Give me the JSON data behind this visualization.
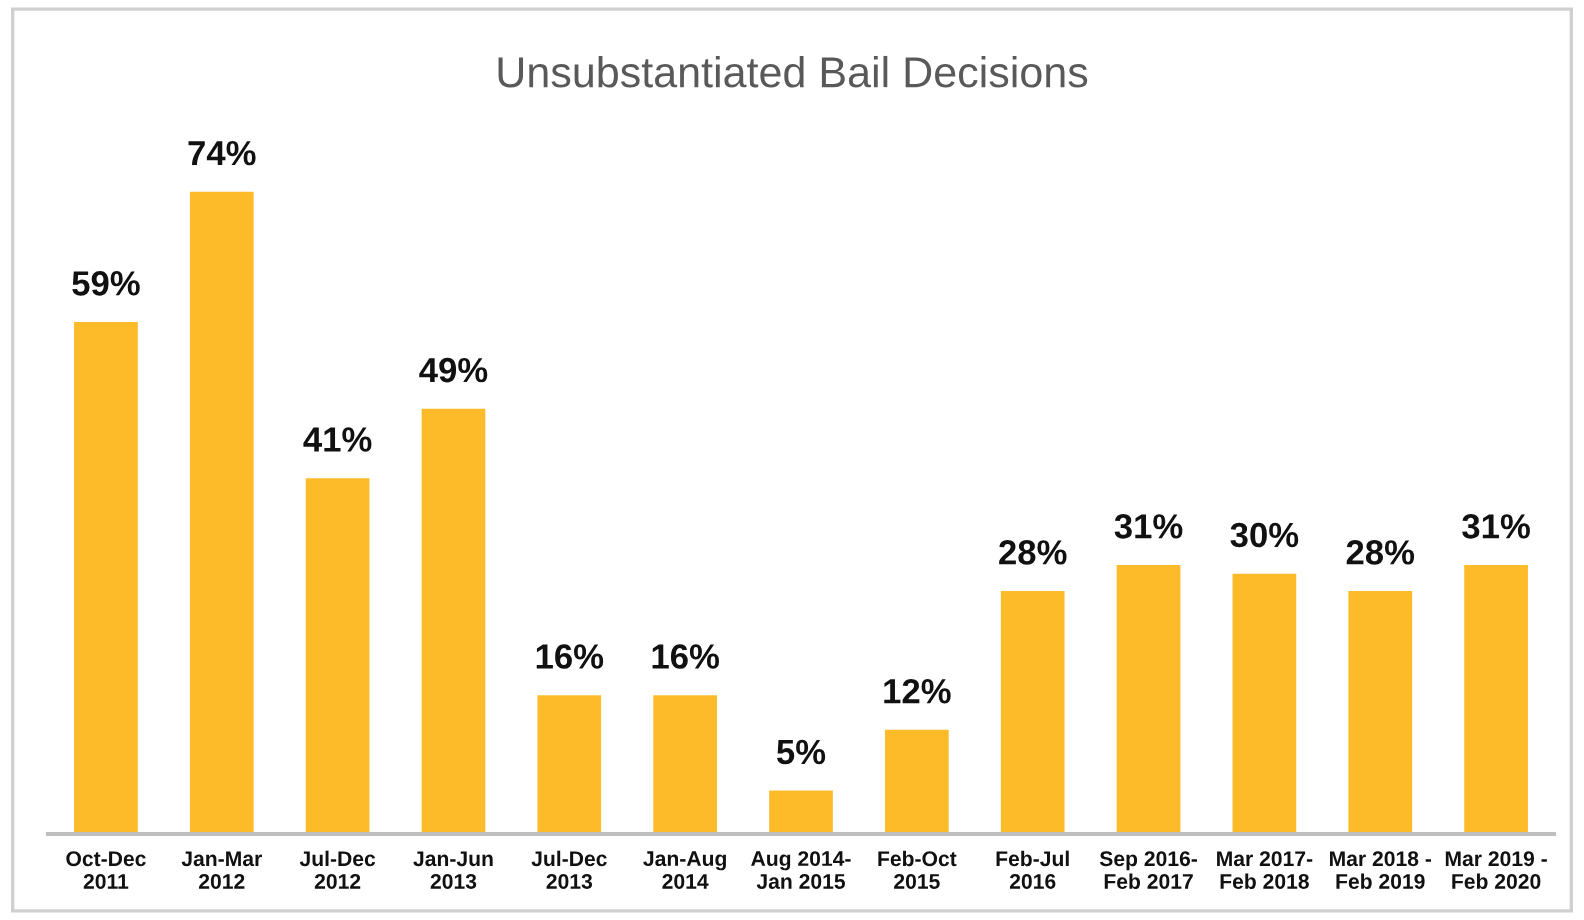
{
  "chart_data": {
    "type": "bar",
    "title": "Unsubstantiated Bail Decisions",
    "categories": [
      "Oct-Dec\n2011",
      "Jan-Mar\n2012",
      "Jul-Dec\n2012",
      "Jan-Jun\n2013",
      "Jul-Dec\n2013",
      "Jan-Aug\n2014",
      "Aug 2014-\nJan 2015",
      "Feb-Oct\n2015",
      "Feb-Jul\n2016",
      "Sep 2016-\nFeb 2017",
      "Mar 2017-\nFeb 2018",
      "Mar 2018 -\nFeb 2019",
      "Mar 2019 -\nFeb 2020"
    ],
    "values": [
      59,
      74,
      41,
      49,
      16,
      16,
      5,
      12,
      28,
      31,
      30,
      28,
      31
    ],
    "value_labels": [
      "59%",
      "74%",
      "41%",
      "49%",
      "16%",
      "16%",
      "5%",
      "12%",
      "28%",
      "31%",
      "30%",
      "28%",
      "31%"
    ],
    "color": "#fdbb2a",
    "grid": false,
    "legend": false
  }
}
